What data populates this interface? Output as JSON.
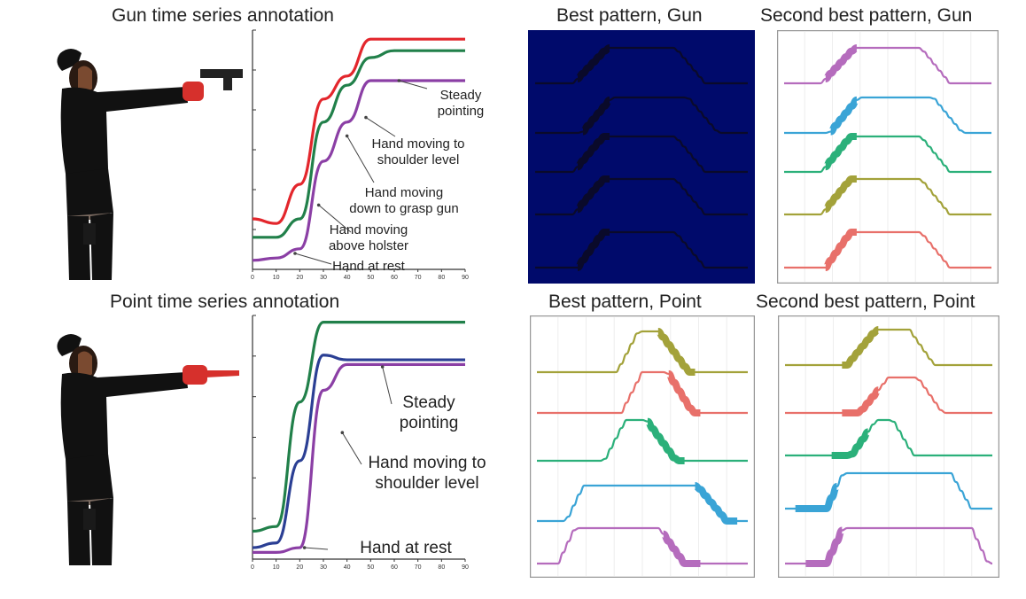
{
  "panels": {
    "gun": {
      "title": "Gun time series annotation",
      "series_colors": [
        "#e3262c",
        "#21804a",
        "#8b3fa5"
      ],
      "annotations": [
        "Steady pointing",
        "Hand moving to shoulder level",
        "Hand moving down to grasp gun",
        "Hand moving above holster",
        "Hand at rest"
      ],
      "annotation_lines": [
        [
          "Steady",
          "pointing"
        ],
        [
          "Hand moving to",
          "shoulder level"
        ],
        [
          "Hand moving",
          "down to grasp gun"
        ],
        [
          "Hand moving",
          "above holster"
        ],
        [
          "Hand at rest"
        ]
      ]
    },
    "point": {
      "title": "Point time series annotation",
      "series_colors": [
        "#21804a",
        "#2b3f94",
        "#8b3fa5"
      ],
      "annotations": [
        "Steady pointing",
        "Hand moving to shoulder level",
        "Hand at rest"
      ],
      "annotation_lines": [
        [
          "Steady",
          "pointing"
        ],
        [
          "Hand moving to",
          "shoulder level"
        ],
        [
          "Hand at rest"
        ]
      ]
    },
    "best_gun": {
      "title": "Best pattern, Gun",
      "background": "#000a6b",
      "line_color": "#0a0a2a"
    },
    "second_gun": {
      "title": "Second best pattern, Gun",
      "colors": [
        "#b56cbd",
        "#3aa4d6",
        "#2bb07a",
        "#a3a23a",
        "#e8706a"
      ]
    },
    "best_point": {
      "title": "Best pattern, Point",
      "colors": [
        "#a3a23a",
        "#e8706a",
        "#2bb07a",
        "#3aa4d6",
        "#b56cbd"
      ]
    },
    "second_point": {
      "title": "Second best pattern, Point",
      "colors": [
        "#a3a23a",
        "#e8706a",
        "#2bb07a",
        "#3aa4d6",
        "#b56cbd"
      ]
    }
  },
  "chart_data": [
    {
      "type": "line",
      "x": [
        0,
        10,
        20,
        30,
        40,
        50,
        60,
        70,
        80,
        90
      ],
      "xlim": [
        0,
        90
      ],
      "tick_labels": [
        "0",
        "10",
        "20",
        "30",
        "40",
        "50",
        "60",
        "70",
        "80",
        "90"
      ],
      "annotation_x": [
        62,
        48,
        40,
        28,
        18
      ],
      "series": [
        {
          "values": [
            0.2,
            0.18,
            0.35,
            0.72,
            0.82,
            0.98,
            0.98,
            0.98,
            0.98,
            0.98
          ]
        },
        {
          "values": [
            0.12,
            0.12,
            0.2,
            0.62,
            0.78,
            0.9,
            0.93,
            0.93,
            0.93,
            0.93
          ]
        },
        {
          "values": [
            0.02,
            0.03,
            0.07,
            0.45,
            0.62,
            0.8,
            0.8,
            0.8,
            0.8,
            0.8
          ]
        }
      ]
    },
    {
      "type": "line",
      "x": [
        0,
        10,
        20,
        30,
        40,
        50,
        60,
        70,
        80,
        90
      ],
      "xlim": [
        0,
        90
      ],
      "tick_labels": [
        "0",
        "10",
        "20",
        "30",
        "40",
        "50",
        "60",
        "70",
        "80",
        "90"
      ],
      "annotation_x": [
        55,
        38,
        22
      ],
      "series": [
        {
          "values": [
            0.1,
            0.12,
            0.65,
            0.99,
            0.99,
            0.99,
            0.99,
            0.99,
            0.99,
            0.99
          ]
        },
        {
          "values": [
            0.03,
            0.05,
            0.4,
            0.85,
            0.83,
            0.83,
            0.83,
            0.83,
            0.83,
            0.83
          ]
        },
        {
          "values": [
            0.01,
            0.01,
            0.03,
            0.7,
            0.81,
            0.81,
            0.81,
            0.81,
            0.81,
            0.81
          ]
        }
      ]
    }
  ]
}
